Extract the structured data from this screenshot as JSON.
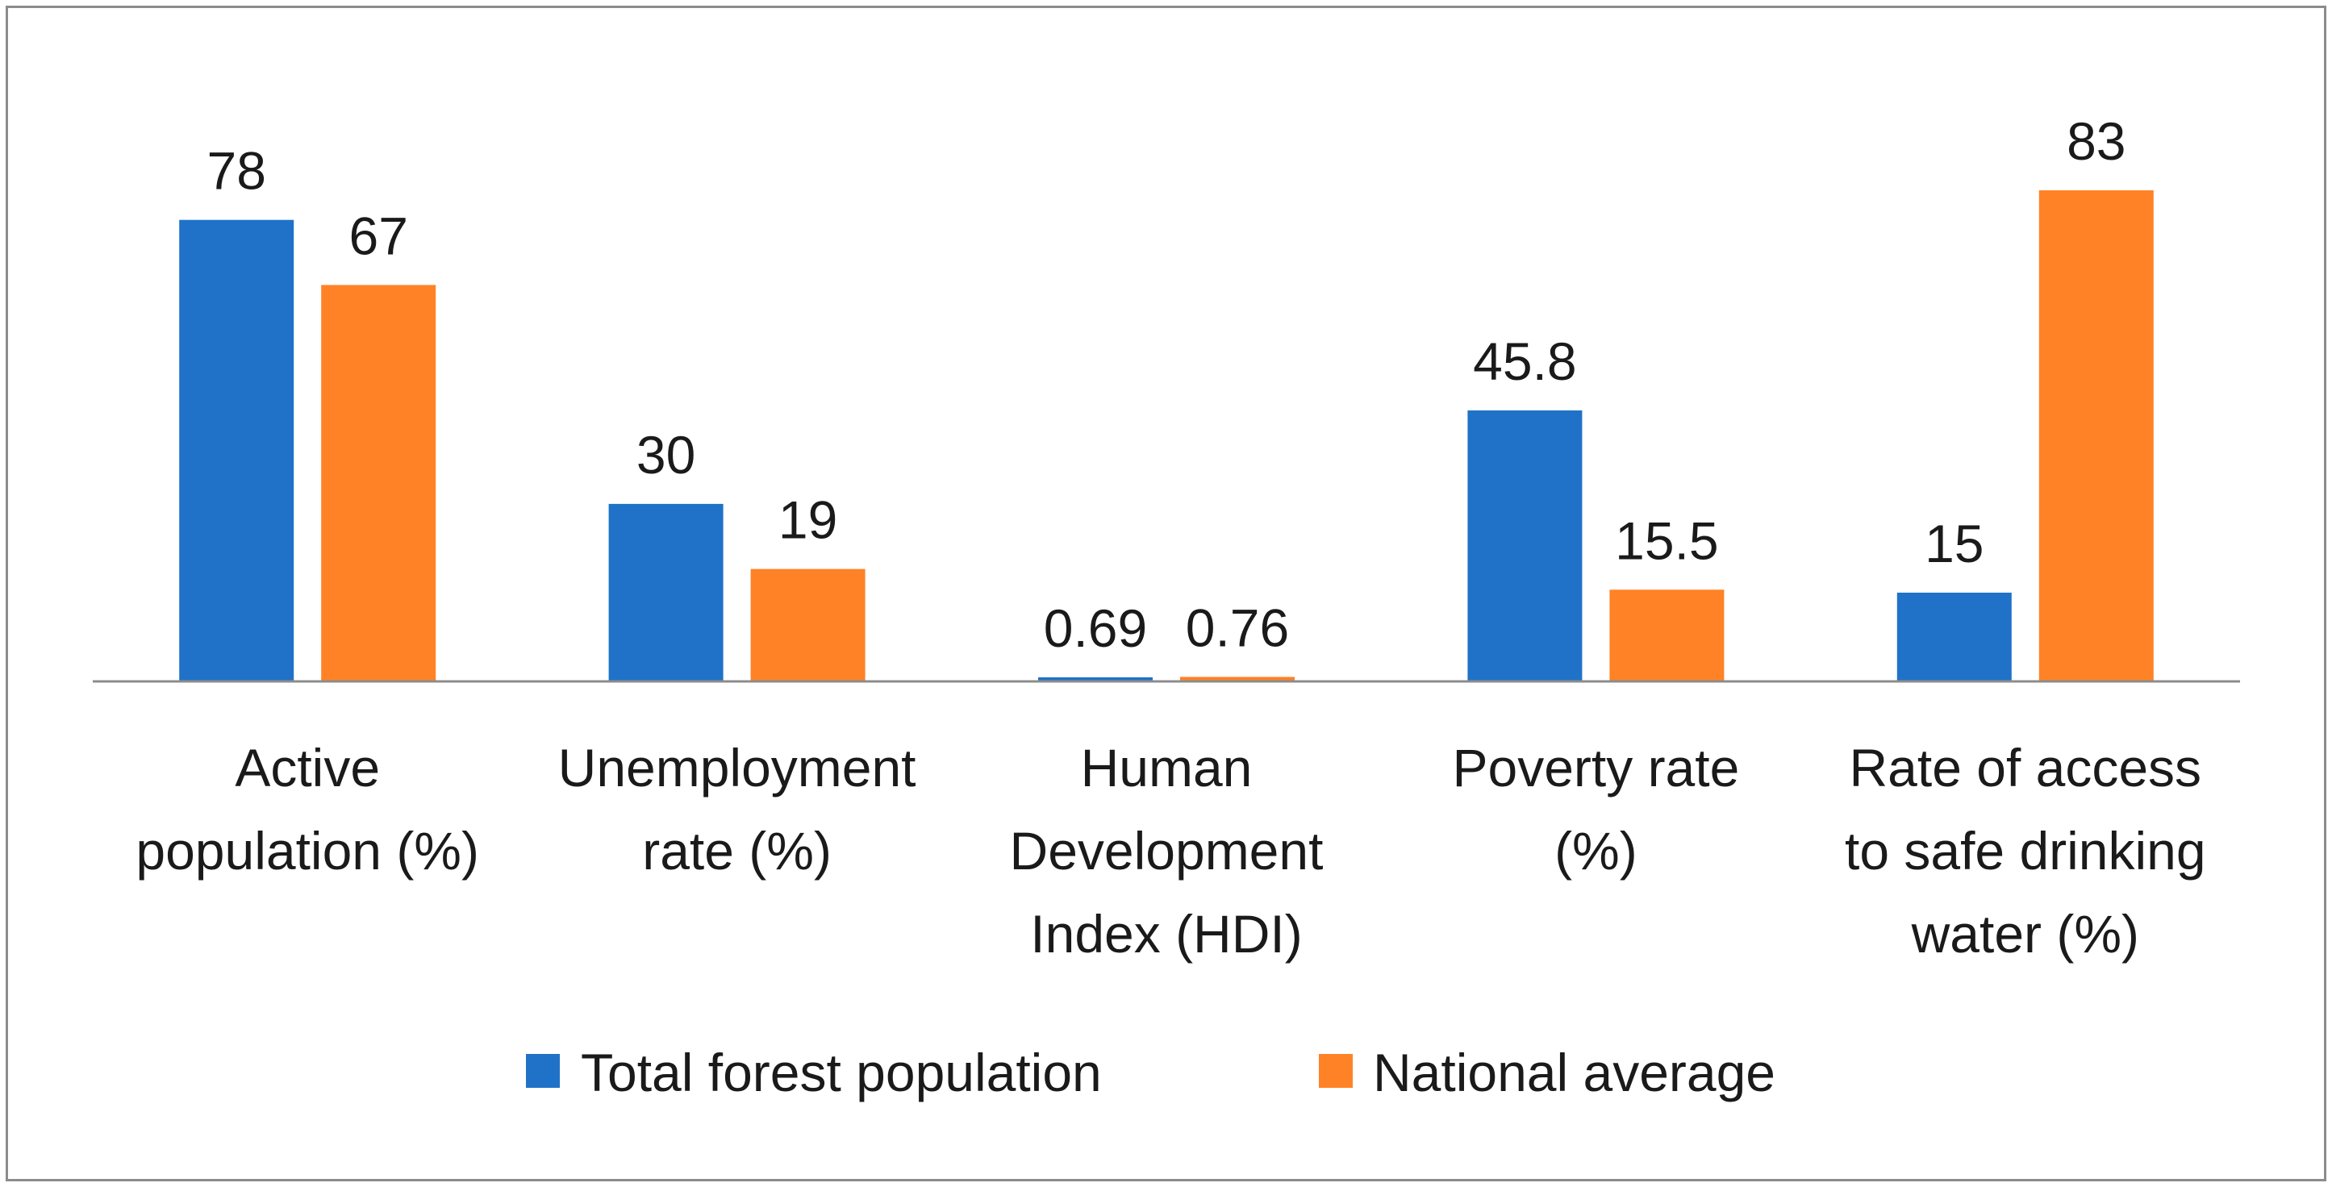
{
  "chart_data": {
    "type": "bar",
    "title": "",
    "xlabel": "",
    "ylabel": "",
    "categories": [
      [
        "Active",
        "population (%)"
      ],
      [
        "Unemployment",
        "rate (%)"
      ],
      [
        "Human",
        "Development",
        "Index (HDI)"
      ],
      [
        "Poverty rate",
        "(%)"
      ],
      [
        "Rate of access",
        "to safe drinking",
        "water (%)"
      ]
    ],
    "series": [
      {
        "name": "Total forest population",
        "color": "#1f72c8",
        "values": [
          78,
          30,
          0.69,
          45.8,
          15
        ]
      },
      {
        "name": "National average",
        "color": "#ff8226",
        "values": [
          67,
          19,
          0.76,
          15.5,
          83
        ]
      }
    ],
    "ylim": [
      0,
      83
    ],
    "grid": false,
    "legend_position": "bottom"
  }
}
